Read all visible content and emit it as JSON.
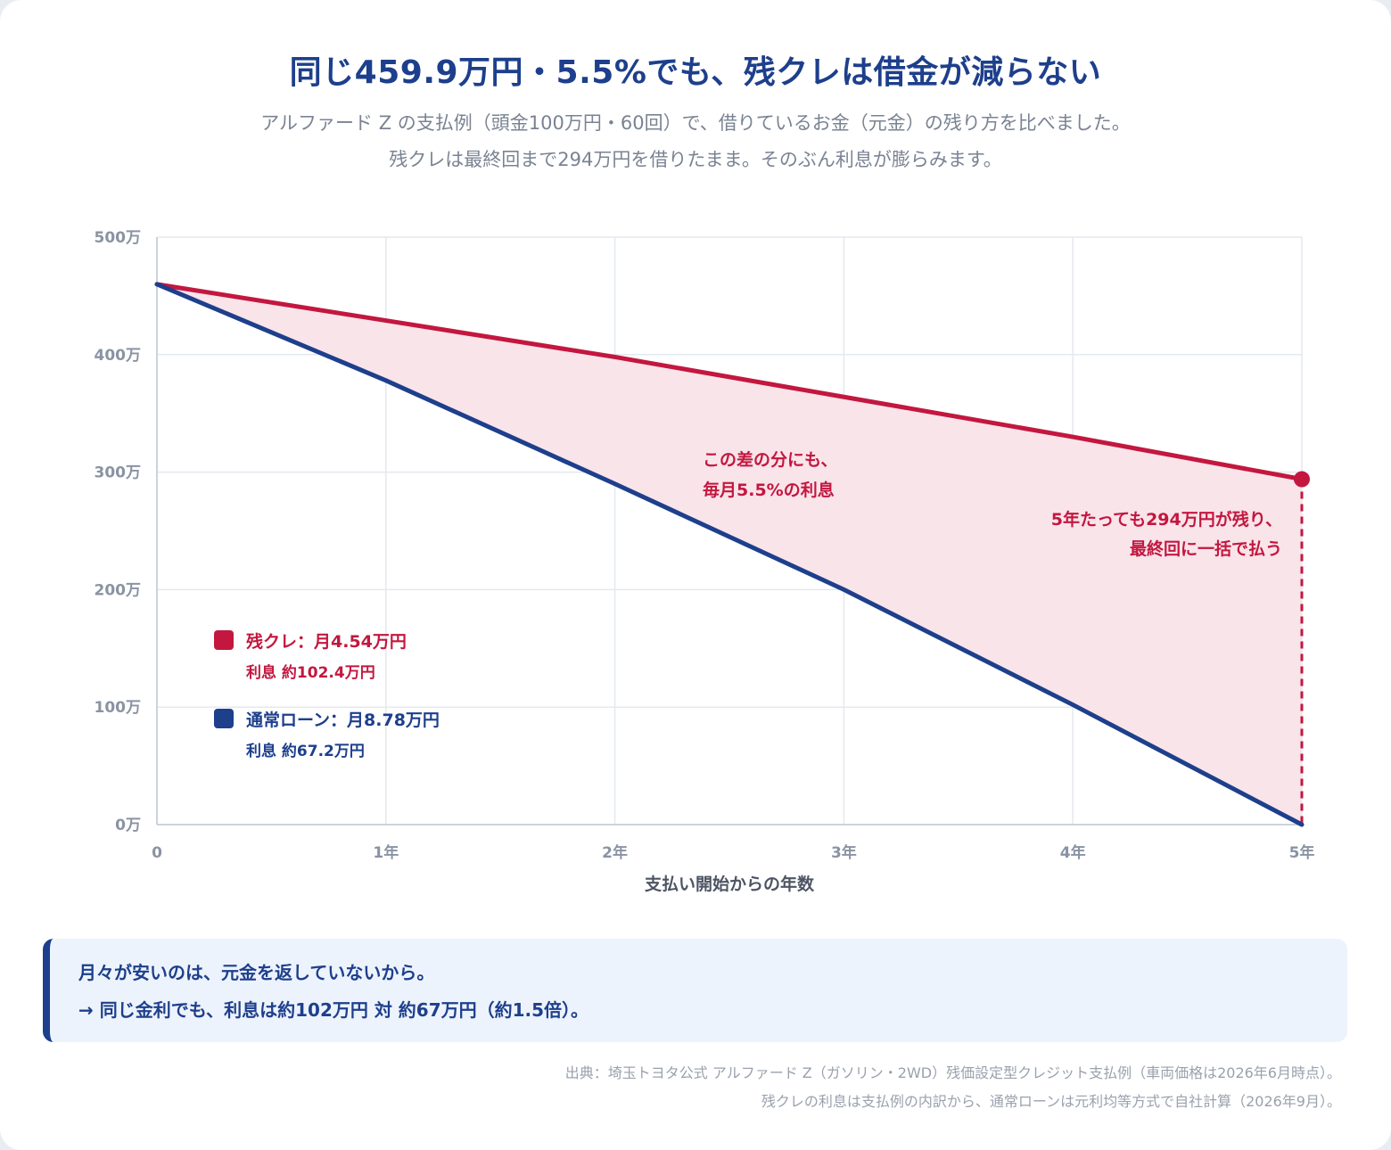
{
  "header": {
    "title": "同じ459.9万円・5.5%でも、残クレは借金が減らない",
    "subtitle_line1": "アルファード Z の支払例（頭金100万円・60回）で、借りているお金（元金）の残り方を比べました。",
    "subtitle_line2": "残クレは最終回まで294万円を借りたまま。そのぶん利息が膨らみます。"
  },
  "chart_data": {
    "type": "line",
    "x": [
      0,
      1,
      2,
      3,
      4,
      5
    ],
    "x_tick_labels": [
      "0",
      "1年",
      "2年",
      "3年",
      "4年",
      "5年"
    ],
    "xlabel": "支払い開始からの年数",
    "ylabel": "",
    "ylim": [
      0,
      500
    ],
    "y_ticks": [
      0,
      100,
      200,
      300,
      400,
      500
    ],
    "y_tick_labels": [
      "0万",
      "100万",
      "200万",
      "300万",
      "400万",
      "500万"
    ],
    "grid": true,
    "series": [
      {
        "name": "残クレ",
        "color": "#c3173f",
        "values": [
          459.9,
          429,
          398,
          364,
          330,
          294
        ]
      },
      {
        "name": "通常ローン",
        "color": "#1d3f8c",
        "values": [
          459.9,
          378,
          290,
          200,
          102,
          0
        ]
      }
    ],
    "fill_between_color": "#f9e4ea",
    "annotations": {
      "gap_line1": "この差の分にも、",
      "gap_line2": "毎月5.5%の利息",
      "end_line1": "5年たっても294万円が残り、",
      "end_line2": "最終回に一括で払う"
    },
    "legend": {
      "placement": "lower-left",
      "items": [
        {
          "label": "残クレ：月4.54万円",
          "sub": "利息 約102.4万円",
          "color": "#c3173f"
        },
        {
          "label": "通常ローン：月8.78万円",
          "sub": "利息 約67.2万円",
          "color": "#1d3f8c"
        }
      ]
    }
  },
  "callout": {
    "line1": "月々が安いのは、元金を返していないから。",
    "line2": "→ 同じ金利でも、利息は約102万円 対 約67万円（約1.5倍）。"
  },
  "source": {
    "line1": "出典：埼玉トヨタ公式 アルファード Z（ガソリン・2WD）残価設定型クレジット支払例（車両価格は2026年6月時点）。",
    "line2": "残クレの利息は支払例の内訳から、通常ローンは元利均等方式で自社計算（2026年9月）。"
  }
}
